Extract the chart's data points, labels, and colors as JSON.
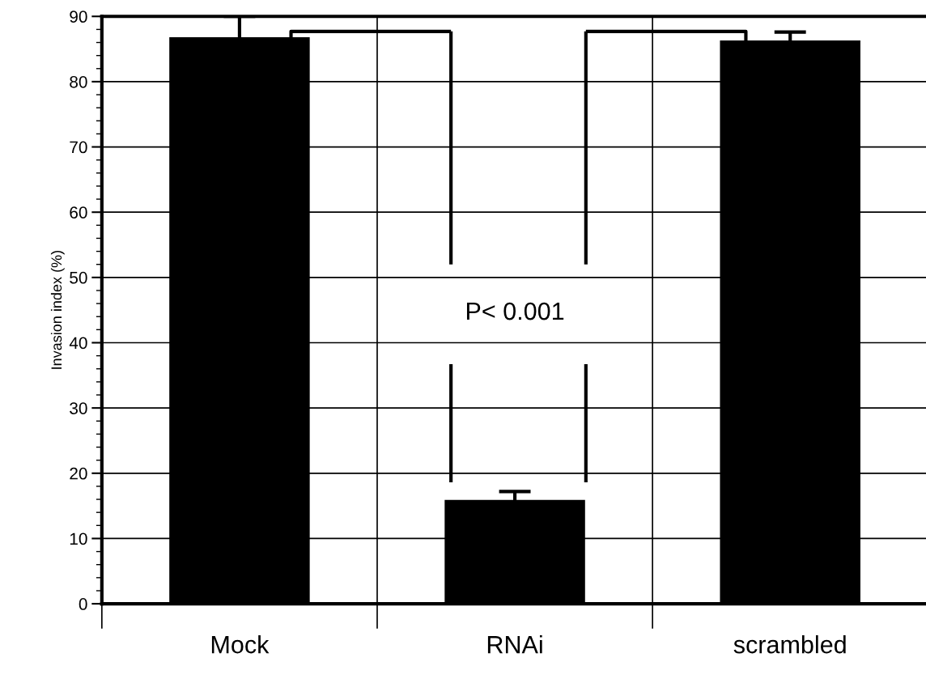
{
  "chart_data": {
    "type": "bar",
    "ylabel": "Invasion index (%)",
    "categories": [
      "Mock",
      "RNAi",
      "scrambled"
    ],
    "values": [
      86.8,
      15.9,
      86.3
    ],
    "errors": [
      3.2,
      1.3,
      1.3
    ],
    "color": "#000000",
    "ylim": [
      0,
      90
    ],
    "yticks": [
      0,
      10,
      20,
      30,
      40,
      50,
      60,
      70,
      80,
      90
    ],
    "grid": true,
    "annotations": [
      "P< 0.001"
    ]
  }
}
